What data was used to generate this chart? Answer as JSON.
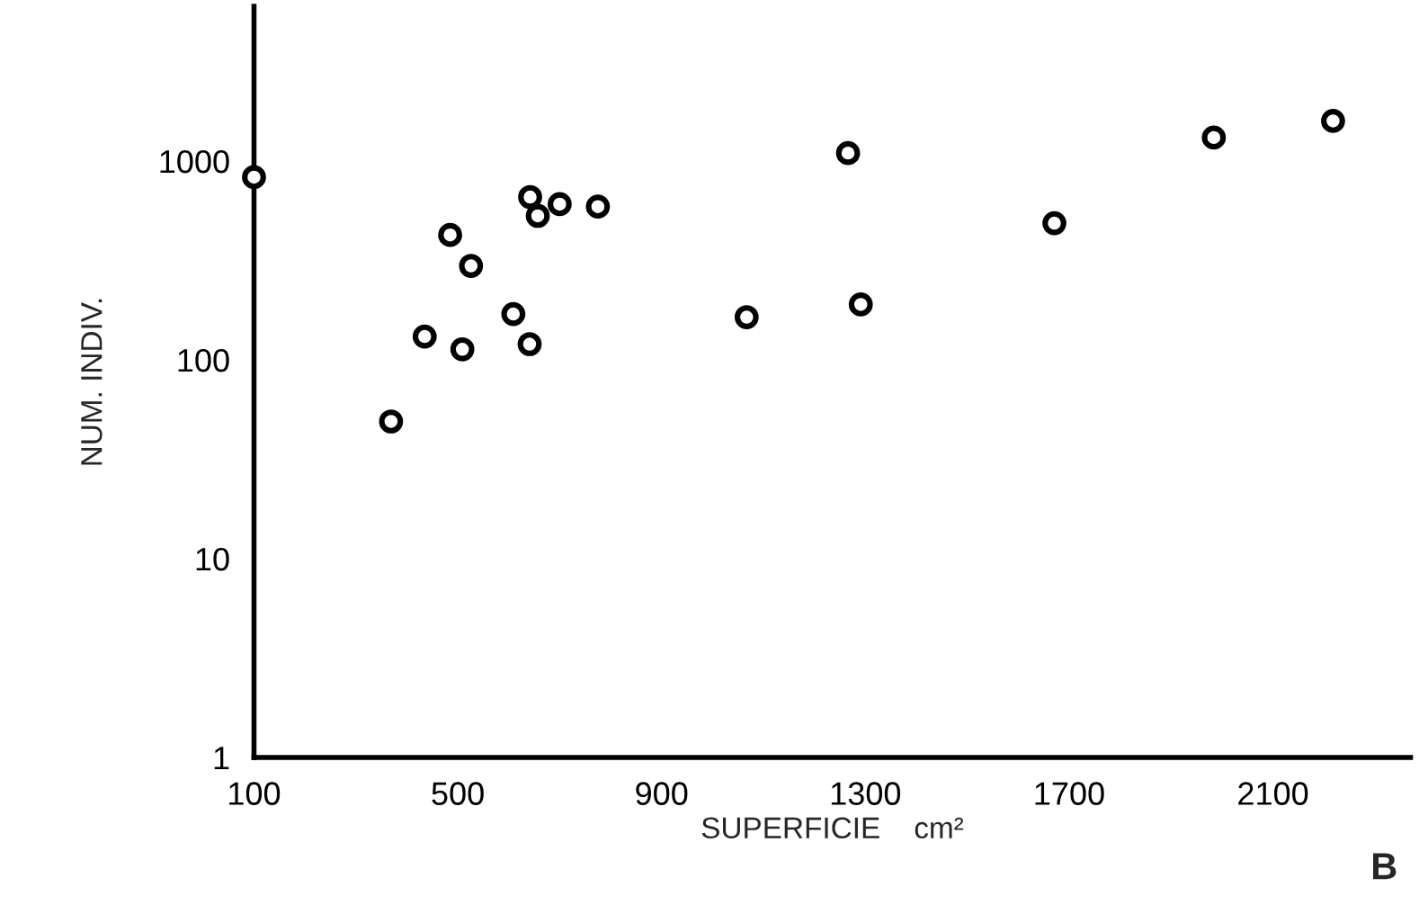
{
  "chart_data": {
    "type": "scatter",
    "xlabel": "SUPERFICIE    cm²",
    "ylabel": "NUM. INDIV.",
    "annotations": [
      "B"
    ],
    "x": [
      100,
      369,
      435,
      509,
      485,
      526,
      609,
      641,
      642,
      657,
      700,
      775,
      1067,
      1266,
      1291,
      1671,
      1984,
      2218
    ],
    "series": [
      {
        "color": "#000000",
        "values": [
          830,
          49,
          131,
          113,
          425,
          297,
          170,
          120,
          659,
          530,
          607,
          590,
          164,
          1097,
          190,
          487,
          1313,
          1592
        ]
      }
    ],
    "xlim": [
      100,
      2370
    ],
    "xticks": [
      100,
      500,
      900,
      1300,
      1700,
      2100
    ],
    "ylim": [
      1,
      6000
    ],
    "yticks": [
      1,
      10,
      100,
      1000
    ],
    "log": "y",
    "marker": "circle",
    "grid": false,
    "legend": false
  }
}
